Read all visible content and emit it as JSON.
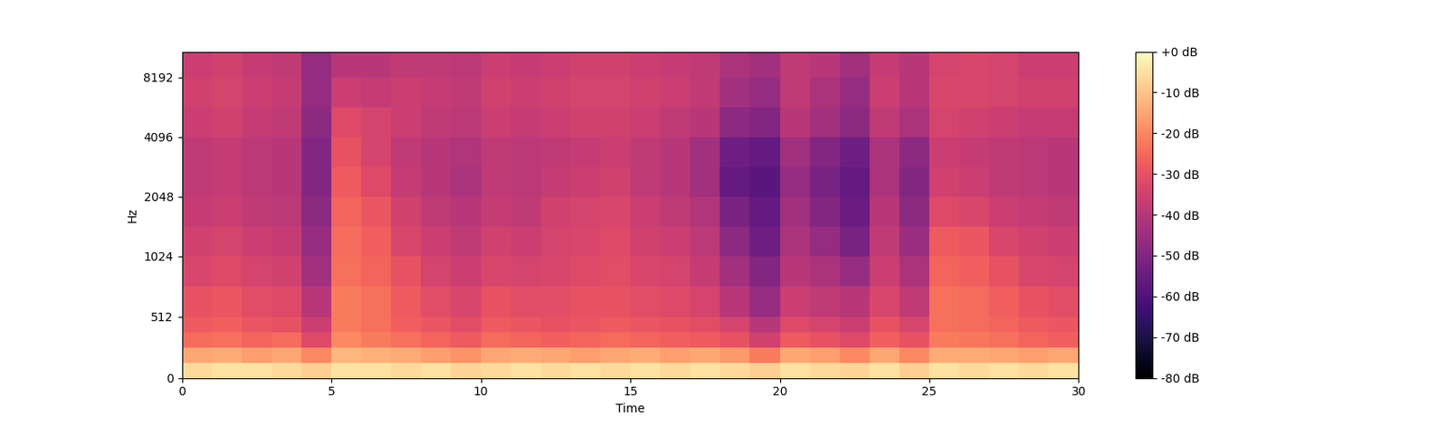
{
  "chart_data": {
    "type": "heatmap",
    "xlabel": "Time",
    "ylabel": "Hz",
    "log": "y",
    "xlim": [
      0,
      30
    ],
    "xticks": [
      0,
      5,
      10,
      15,
      20,
      25,
      30
    ],
    "ylim": [
      0,
      11025
    ],
    "yticks": [
      0,
      512,
      1024,
      2048,
      4096,
      8192
    ],
    "x_edges": [
      0,
      1,
      2,
      3,
      4,
      5,
      6,
      7,
      8,
      9,
      10,
      11,
      12,
      13,
      14,
      15,
      16,
      17,
      18,
      19,
      20,
      21,
      22,
      23,
      24,
      25,
      26,
      27,
      28,
      29,
      30
    ],
    "y_edges": [
      0,
      128,
      256,
      384,
      512,
      768,
      1024,
      1448,
      2048,
      2896,
      4096,
      5793,
      8192,
      11025
    ],
    "cells": [
      [
        -6,
        -5,
        -5,
        -6,
        -8,
        -5,
        -5,
        -6,
        -5,
        -7,
        -6,
        -5,
        -6,
        -5,
        -6,
        -5,
        -6,
        -5,
        -6,
        -8,
        -5,
        -6,
        -7,
        -5,
        -8,
        -5,
        -6,
        -5,
        -6,
        -5
      ],
      [
        -15,
        -14,
        -16,
        -15,
        -20,
        -12,
        -13,
        -14,
        -16,
        -18,
        -15,
        -14,
        -15,
        -16,
        -15,
        -14,
        -16,
        -15,
        -17,
        -22,
        -15,
        -16,
        -20,
        -15,
        -20,
        -14,
        -14,
        -15,
        -16,
        -15
      ],
      [
        -25,
        -24,
        -26,
        -25,
        -32,
        -20,
        -22,
        -24,
        -26,
        -28,
        -25,
        -26,
        -27,
        -26,
        -25,
        -26,
        -27,
        -28,
        -30,
        -35,
        -28,
        -30,
        -32,
        -27,
        -30,
        -22,
        -23,
        -24,
        -26,
        -27
      ],
      [
        -28,
        -27,
        -29,
        -30,
        -36,
        -22,
        -24,
        -27,
        -29,
        -31,
        -28,
        -29,
        -30,
        -29,
        -28,
        -29,
        -30,
        -31,
        -34,
        -40,
        -32,
        -34,
        -36,
        -30,
        -33,
        -24,
        -25,
        -26,
        -28,
        -29
      ],
      [
        -30,
        -29,
        -31,
        -32,
        -40,
        -22,
        -24,
        -28,
        -31,
        -33,
        -30,
        -31,
        -31,
        -30,
        -30,
        -31,
        -32,
        -34,
        -40,
        -46,
        -36,
        -38,
        -40,
        -33,
        -38,
        -24,
        -25,
        -27,
        -30,
        -31
      ],
      [
        -33,
        -32,
        -34,
        -35,
        -44,
        -24,
        -26,
        -30,
        -34,
        -36,
        -33,
        -34,
        -33,
        -32,
        -31,
        -33,
        -34,
        -37,
        -44,
        -50,
        -40,
        -42,
        -46,
        -36,
        -42,
        -26,
        -27,
        -30,
        -33,
        -34
      ],
      [
        -35,
        -34,
        -36,
        -37,
        -46,
        -25,
        -27,
        -33,
        -36,
        -38,
        -35,
        -36,
        -34,
        -33,
        -32,
        -35,
        -36,
        -39,
        -48,
        -54,
        -42,
        -46,
        -52,
        -38,
        -45,
        -28,
        -29,
        -33,
        -35,
        -36
      ],
      [
        -37,
        -36,
        -38,
        -39,
        -48,
        -26,
        -29,
        -35,
        -38,
        -40,
        -37,
        -38,
        -35,
        -34,
        -33,
        -36,
        -38,
        -41,
        -52,
        -56,
        -44,
        -50,
        -55,
        -40,
        -48,
        -32,
        -33,
        -36,
        -37,
        -38
      ],
      [
        -38,
        -37,
        -39,
        -40,
        -50,
        -28,
        -32,
        -37,
        -40,
        -42,
        -38,
        -39,
        -37,
        -36,
        -35,
        -38,
        -40,
        -44,
        -56,
        -58,
        -46,
        -52,
        -56,
        -42,
        -50,
        -35,
        -36,
        -38,
        -39,
        -40
      ],
      [
        -38,
        -37,
        -39,
        -40,
        -50,
        -30,
        -34,
        -38,
        -40,
        -41,
        -38,
        -39,
        -38,
        -37,
        -36,
        -38,
        -40,
        -44,
        -54,
        -56,
        -44,
        -50,
        -54,
        -42,
        -48,
        -36,
        -37,
        -38,
        -39,
        -40
      ],
      [
        -36,
        -35,
        -37,
        -38,
        -48,
        -32,
        -34,
        -36,
        -38,
        -39,
        -36,
        -37,
        -36,
        -35,
        -35,
        -36,
        -38,
        -40,
        -48,
        -50,
        -40,
        -44,
        -48,
        -38,
        -42,
        -34,
        -35,
        -36,
        -37,
        -37
      ],
      [
        -35,
        -34,
        -36,
        -37,
        -46,
        -36,
        -37,
        -36,
        -37,
        -38,
        -35,
        -36,
        -35,
        -34,
        -34,
        -35,
        -36,
        -38,
        -44,
        -46,
        -38,
        -42,
        -46,
        -36,
        -40,
        -33,
        -33,
        -34,
        -35,
        -35
      ],
      [
        -36,
        -35,
        -37,
        -38,
        -46,
        -40,
        -40,
        -38,
        -38,
        -39,
        -36,
        -37,
        -36,
        -35,
        -35,
        -36,
        -37,
        -38,
        -42,
        -44,
        -38,
        -40,
        -44,
        -37,
        -40,
        -34,
        -33,
        -34,
        -36,
        -36
      ]
    ],
    "colorbar_range": [
      -80,
      0
    ],
    "colorbar_ticks": [
      {
        "value": 0,
        "label": "+0 dB"
      },
      {
        "value": -10,
        "label": "-10 dB"
      },
      {
        "value": -20,
        "label": "-20 dB"
      },
      {
        "value": -30,
        "label": "-30 dB"
      },
      {
        "value": -40,
        "label": "-40 dB"
      },
      {
        "value": -50,
        "label": "-50 dB"
      },
      {
        "value": -60,
        "label": "-60 dB"
      },
      {
        "value": -70,
        "label": "-70 dB"
      },
      {
        "value": -80,
        "label": "-80 dB"
      }
    ]
  }
}
